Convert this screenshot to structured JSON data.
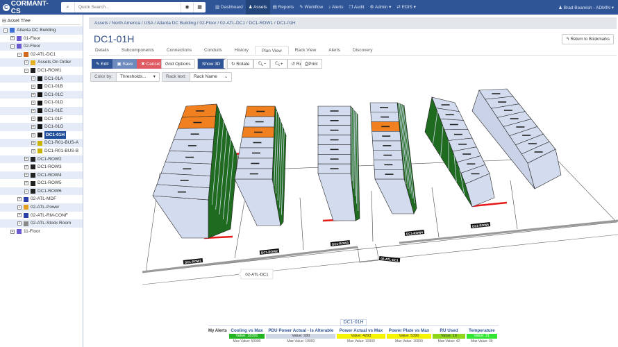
{
  "nav": {
    "logo": "CORMANT-CS",
    "search_placeholder": "Quick Search...",
    "items": [
      {
        "label": "Dashboard",
        "icon": "chart-icon"
      },
      {
        "label": "Assets",
        "icon": "sitemap-icon",
        "active": true
      },
      {
        "label": "Reports",
        "icon": "file-icon"
      },
      {
        "label": "Workflow",
        "icon": "pencil-icon"
      },
      {
        "label": "Alerts",
        "icon": "bell-icon"
      },
      {
        "label": "Audit",
        "icon": "copy-icon"
      },
      {
        "label": "Admin ▾",
        "icon": "gears-icon"
      },
      {
        "label": "EDIS ▾",
        "icon": "exchange-icon"
      }
    ],
    "user": "Brad Beamish - ADMIN ▾"
  },
  "sidebar": {
    "title": "Asset Tree",
    "items": [
      {
        "label": "Atlanta DC Building",
        "level": 0,
        "pm": "−",
        "icon_color": "#3b6fd1",
        "alt": true
      },
      {
        "label": "01-Floor",
        "level": 1,
        "pm": "+",
        "icon_color": "#6a5acd"
      },
      {
        "label": "02-Floor",
        "level": 1,
        "pm": "−",
        "icon_color": "#6a5acd",
        "alt": true
      },
      {
        "label": "02-ATL-DC1",
        "level": 2,
        "pm": "−",
        "icon_color": "#d2691e"
      },
      {
        "label": "Assets On Order",
        "level": 3,
        "pm": "+",
        "icon_color": "#e0b020",
        "alt": true
      },
      {
        "label": "DC1-ROW1",
        "level": 3,
        "pm": "−",
        "icon_color": "#222"
      },
      {
        "label": "DC1-01A",
        "level": 4,
        "pm": "+",
        "icon_color": "#111",
        "alt": true
      },
      {
        "label": "DC1-01B",
        "level": 4,
        "pm": "+",
        "icon_color": "#111"
      },
      {
        "label": "DC1-01C",
        "level": 4,
        "pm": "+",
        "icon_color": "#111",
        "alt": true
      },
      {
        "label": "DC1-01D",
        "level": 4,
        "pm": "+",
        "icon_color": "#111"
      },
      {
        "label": "DC1-01E",
        "level": 4,
        "pm": "+",
        "icon_color": "#111",
        "alt": true
      },
      {
        "label": "DC1-01F",
        "level": 4,
        "pm": "+",
        "icon_color": "#111"
      },
      {
        "label": "DC1-01G",
        "level": 4,
        "pm": "+",
        "icon_color": "#111",
        "alt": true
      },
      {
        "label": "DC1-01H",
        "level": 4,
        "pm": "+",
        "icon_color": "#111",
        "selected": true
      },
      {
        "label": "DC1-R01-BUS-A",
        "level": 4,
        "pm": "+",
        "icon_color": "#c8b400",
        "alt": true
      },
      {
        "label": "DC1-R01-BUS-B",
        "level": 4,
        "pm": "+",
        "icon_color": "#c8b400"
      },
      {
        "label": "DC1-ROW2",
        "level": 3,
        "pm": "+",
        "icon_color": "#222",
        "alt": true
      },
      {
        "label": "DC1-ROW3",
        "level": 3,
        "pm": "+",
        "icon_color": "#222"
      },
      {
        "label": "DC1-ROW4",
        "level": 3,
        "pm": "+",
        "icon_color": "#222",
        "alt": true
      },
      {
        "label": "DC1-ROW5",
        "level": 3,
        "pm": "+",
        "icon_color": "#222"
      },
      {
        "label": "DC1-ROW6",
        "level": 3,
        "pm": "+",
        "icon_color": "#222",
        "alt": true
      },
      {
        "label": "02-ATL-MDF",
        "level": 2,
        "pm": "+",
        "icon_color": "#2b3fa8"
      },
      {
        "label": "02-ATL-Power",
        "level": 2,
        "pm": "+",
        "icon_color": "#e0a020",
        "alt": true
      },
      {
        "label": "02-ATL-RM-CONF",
        "level": 2,
        "pm": "+",
        "icon_color": "#2b3fa8"
      },
      {
        "label": "02-ATL-Stock Room",
        "level": 2,
        "pm": "+",
        "icon_color": "#888",
        "alt": true
      },
      {
        "label": "11-Floor",
        "level": 1,
        "pm": "+",
        "icon_color": "#6a5acd"
      }
    ]
  },
  "breadcrumb": "Assets  /  North America  /  USA  /  Atlanta DC Building  /  02-Floor  /  02-ATL-DC1  /  DC1-ROW1  /  DC1-01H",
  "title": "DC1-01H",
  "return_button": "↰ Return to Bookmarks",
  "tabs": [
    "Details",
    "Subcomponents",
    "Connections",
    "Conduits",
    "History",
    "Plan View",
    "Rack View",
    "Alerts",
    "Discovery"
  ],
  "active_tab": "Plan View",
  "toolbar": {
    "edit": "✎ Edit",
    "save": "▣ Save",
    "cancel": "✖ Cancel",
    "grid_options": "Grid Options",
    "show3d": "Show 3D",
    "rotate": "↻ Rotate",
    "zoom_out": "🔍︎−",
    "zoom_in": "🔍︎+",
    "reset": "↺ Reset",
    "print": "⎙Print"
  },
  "filters": {
    "color_by_label": "Color by:",
    "color_by_value": "Thresholds...",
    "rack_text_label": "Rack text:",
    "rack_text_value": "Rack Name"
  },
  "scene": {
    "row_labels": [
      "DC1-ROW1",
      "DC1-ROW2",
      "DC1-ROW3",
      "DC1-ROW4",
      "DC1-ROW5"
    ],
    "door_label": "02-ATL-DC1",
    "room_tooltip": "02-ATL-DC1",
    "colors": {
      "rack_face": "#d3dbee",
      "rack_side": "#1f6b1f",
      "alert": "#f08020",
      "floor_bar": "#e81818"
    }
  },
  "alerts": {
    "caption": "DC1-01H",
    "label": "My Alerts",
    "items": [
      {
        "name": "Cooling vs Max",
        "value": "Value: 18391",
        "max": "Max Value: 50000",
        "color": "#22b522",
        "text": "#fff",
        "w": 50
      },
      {
        "name": "PDU Power Actual - Is Alterable",
        "value": "Value: 930",
        "max": "Max Value: 10000",
        "color": "#cfd6e6",
        "text": "#333",
        "w": 100
      },
      {
        "name": "Power Actual vs Max",
        "value": "Value: 4293",
        "max": "Max Value: 10000",
        "color": "#f4f400",
        "text": "#333",
        "w": 67
      },
      {
        "name": "Power Plate vs Max",
        "value": "Value: 5390",
        "max": "Max Value: 10000",
        "color": "#f4f400",
        "text": "#333",
        "w": 62
      },
      {
        "name": "RU Used",
        "value": "Value: 19",
        "max": "Max Value: 42",
        "color": "#8fd61a",
        "text": "#333",
        "w": 38
      },
      {
        "name": "Temperature",
        "value": "Value: 21",
        "max": "Max Value: 39",
        "color": "#33e633",
        "text": "#fff",
        "w": 40
      }
    ]
  }
}
